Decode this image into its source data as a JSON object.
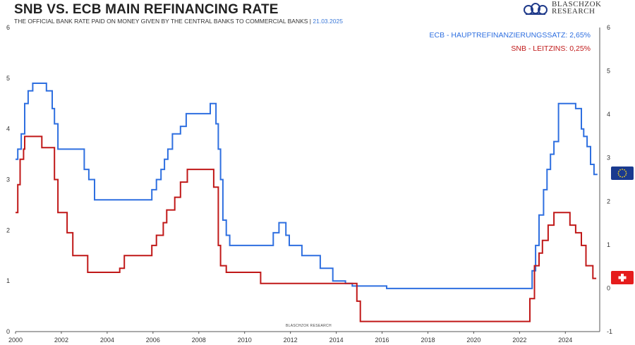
{
  "header": {
    "title": "SNB VS. ECB MAIN REFINANCING RATE",
    "subtitle": "THE OFFICIAL BANK RATE PAID ON MONEY GIVEN BY THE CENTRAL BANKS TO COMMERCIAL BANKS |",
    "date": "21.03.2025"
  },
  "logo": {
    "line1": "BLASCHZOK",
    "line2": "RESEARCH"
  },
  "watermark": "BLASCHZOK RESEARCH",
  "colors": {
    "ecb": "#2e6fe0",
    "snb": "#c01818"
  },
  "chart_data": {
    "type": "line",
    "title": "SNB VS. ECB MAIN REFINANCING RATE",
    "xlim": [
      2000,
      2025.5
    ],
    "ylim_left": [
      0,
      6
    ],
    "ylim_right": [
      -1,
      6
    ],
    "x_ticks": [
      "2000",
      "2002",
      "2004",
      "2006",
      "2008",
      "2010",
      "2012",
      "2014",
      "2016",
      "2018",
      "2020",
      "2022",
      "2024"
    ],
    "y_ticks_left": [
      "0",
      "1",
      "2",
      "3",
      "4",
      "5",
      "6"
    ],
    "y_ticks_right": [
      "-1",
      "0",
      "1",
      "2",
      "3",
      "4",
      "5",
      "6"
    ],
    "series": [
      {
        "name": "ECB - HAUPTREFINANZIERUNGSSATZ: 2,65%",
        "axis": "left",
        "color": "#2e6fe0",
        "step": true,
        "points": [
          [
            2000.0,
            3.4
          ],
          [
            2000.1,
            3.6
          ],
          [
            2000.25,
            3.9
          ],
          [
            2000.4,
            4.5
          ],
          [
            2000.55,
            4.75
          ],
          [
            2000.75,
            4.9
          ],
          [
            2001.35,
            4.75
          ],
          [
            2001.6,
            4.4
          ],
          [
            2001.7,
            4.1
          ],
          [
            2001.85,
            3.6
          ],
          [
            2003.0,
            3.2
          ],
          [
            2003.2,
            3.0
          ],
          [
            2003.45,
            2.6
          ],
          [
            2005.95,
            2.8
          ],
          [
            2006.15,
            3.0
          ],
          [
            2006.35,
            3.2
          ],
          [
            2006.5,
            3.4
          ],
          [
            2006.65,
            3.6
          ],
          [
            2006.85,
            3.9
          ],
          [
            2007.2,
            4.05
          ],
          [
            2007.45,
            4.3
          ],
          [
            2008.5,
            4.5
          ],
          [
            2008.75,
            4.1
          ],
          [
            2008.85,
            3.6
          ],
          [
            2008.95,
            3.0
          ],
          [
            2009.05,
            2.2
          ],
          [
            2009.2,
            1.9
          ],
          [
            2009.35,
            1.7
          ],
          [
            2011.25,
            1.95
          ],
          [
            2011.5,
            2.15
          ],
          [
            2011.8,
            1.9
          ],
          [
            2011.95,
            1.7
          ],
          [
            2012.5,
            1.5
          ],
          [
            2013.3,
            1.25
          ],
          [
            2013.85,
            1.0
          ],
          [
            2014.4,
            0.95
          ],
          [
            2014.7,
            0.9
          ],
          [
            2016.2,
            0.85
          ],
          [
            2022.55,
            1.2
          ],
          [
            2022.7,
            1.7
          ],
          [
            2022.85,
            2.3
          ],
          [
            2023.05,
            2.8
          ],
          [
            2023.2,
            3.2
          ],
          [
            2023.35,
            3.5
          ],
          [
            2023.5,
            3.75
          ],
          [
            2023.7,
            4.5
          ],
          [
            2024.45,
            4.4
          ],
          [
            2024.7,
            4.0
          ],
          [
            2024.8,
            3.85
          ],
          [
            2024.95,
            3.65
          ],
          [
            2025.1,
            3.3
          ],
          [
            2025.25,
            3.1
          ],
          [
            2025.4,
            3.1
          ]
        ]
      },
      {
        "name": "SNB - LEITZINS: 0,25%",
        "axis": "left",
        "color": "#c01818",
        "step": true,
        "points": [
          [
            2000.0,
            2.35
          ],
          [
            2000.1,
            2.9
          ],
          [
            2000.2,
            3.4
          ],
          [
            2000.35,
            3.6
          ],
          [
            2000.4,
            3.85
          ],
          [
            2001.15,
            3.63
          ],
          [
            2001.7,
            3.0
          ],
          [
            2001.85,
            2.35
          ],
          [
            2002.25,
            1.95
          ],
          [
            2002.5,
            1.5
          ],
          [
            2003.15,
            1.17
          ],
          [
            2004.55,
            1.25
          ],
          [
            2004.75,
            1.5
          ],
          [
            2005.95,
            1.7
          ],
          [
            2006.15,
            1.9
          ],
          [
            2006.45,
            2.15
          ],
          [
            2006.6,
            2.4
          ],
          [
            2006.95,
            2.65
          ],
          [
            2007.2,
            2.95
          ],
          [
            2007.5,
            3.2
          ],
          [
            2008.65,
            2.85
          ],
          [
            2008.85,
            1.7
          ],
          [
            2008.95,
            1.3
          ],
          [
            2009.2,
            1.17
          ],
          [
            2010.7,
            0.95
          ],
          [
            2014.9,
            0.6
          ],
          [
            2015.05,
            0.2
          ],
          [
            2022.45,
            0.65
          ],
          [
            2022.65,
            1.3
          ],
          [
            2022.85,
            1.55
          ],
          [
            2023.0,
            1.8
          ],
          [
            2023.25,
            2.1
          ],
          [
            2023.5,
            2.35
          ],
          [
            2024.2,
            2.1
          ],
          [
            2024.45,
            1.95
          ],
          [
            2024.7,
            1.7
          ],
          [
            2024.9,
            1.3
          ],
          [
            2025.2,
            1.05
          ],
          [
            2025.35,
            1.05
          ]
        ]
      }
    ]
  }
}
